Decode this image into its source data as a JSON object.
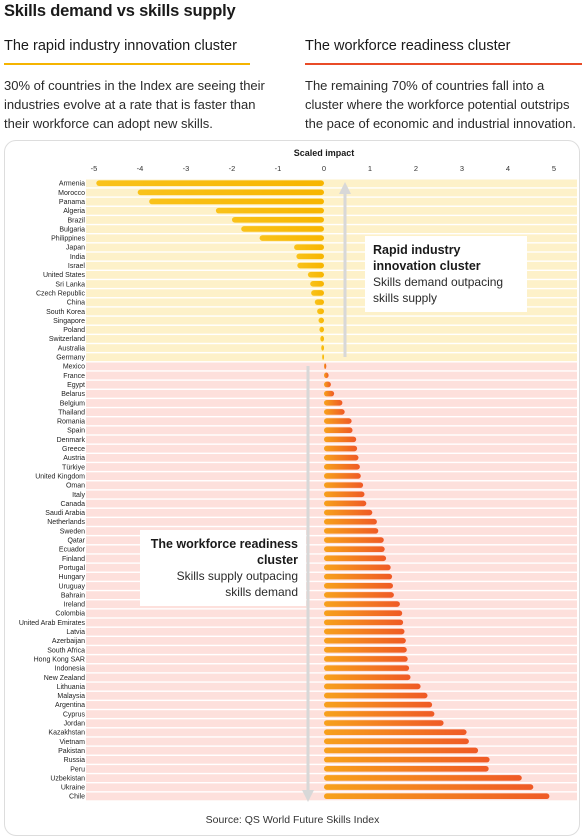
{
  "title": "Skills demand vs skills supply",
  "left_heading": "The rapid industry innovation cluster",
  "right_heading": "The workforce readiness cluster",
  "left_text": "30% of countries in the Index are seeing their industries evolve at a rate that is faster than their workforce can adopt new skills.",
  "right_text": "The remaining 70% of countries fall into a cluster where the workforce potential outstrips the pace of economic and industrial innovation.",
  "annotation_top_title": "Rapid industry innovation cluster",
  "annotation_top_sub": "Skills demand outpacing skills supply",
  "annotation_bottom_title": "The workforce readiness cluster",
  "annotation_bottom_sub": "Skills supply outpacing skills demand",
  "source": "Source: QS World Future Skills Index",
  "colors": {
    "yellow_bar": "#f7b500",
    "orange_bar": "#ef5a26",
    "yellow_band": "#fdf1c9",
    "red_band": "#fde0dc",
    "arrow": "#d8d8d8"
  },
  "chart_data": {
    "type": "bar",
    "orientation": "horizontal",
    "title": "Scaled impact",
    "xlim": [
      -5,
      5
    ],
    "xticks": [
      -5,
      -4,
      -3,
      -2,
      -1,
      0,
      1,
      2,
      3,
      4,
      5
    ],
    "categories": [
      "Armenia",
      "Morocco",
      "Panama",
      "Algeria",
      "Brazil",
      "Bulgaria",
      "Philippines",
      "Japan",
      "India",
      "Israel",
      "United States",
      "Sri Lanka",
      "Czech Republic",
      "China",
      "South Korea",
      "Singapore",
      "Poland",
      "Switzerland",
      "Australia",
      "Germany",
      "Mexico",
      "France",
      "Egypt",
      "Belarus",
      "Belgium",
      "Thailand",
      "Romania",
      "Spain",
      "Denmark",
      "Greece",
      "Austria",
      "Türkiye",
      "United Kingdom",
      "Oman",
      "Italy",
      "Canada",
      "Saudi Arabia",
      "Netherlands",
      "Sweden",
      "Qatar",
      "Ecuador",
      "Finland",
      "Portugal",
      "Hungary",
      "Uruguay",
      "Bahrain",
      "Ireland",
      "Colombia",
      "United Arab Emirates",
      "Latvia",
      "Azerbaijan",
      "South Africa",
      "Hong Kong SAR",
      "Indonesia",
      "New Zealand",
      "Lithuania",
      "Malaysia",
      "Argentina",
      "Cyprus",
      "Jordan",
      "Kazakhstan",
      "Vietnam",
      "Pakistan",
      "Russia",
      "Peru",
      "Uzbekistan",
      "Ukraine",
      "Chile"
    ],
    "values": [
      -4.95,
      -4.05,
      -3.8,
      -2.35,
      -2.0,
      -1.8,
      -1.4,
      -0.65,
      -0.6,
      -0.58,
      -0.35,
      -0.3,
      -0.28,
      -0.2,
      -0.15,
      -0.12,
      -0.1,
      -0.08,
      -0.06,
      -0.04,
      0.05,
      0.1,
      0.15,
      0.22,
      0.4,
      0.45,
      0.6,
      0.62,
      0.7,
      0.72,
      0.75,
      0.78,
      0.8,
      0.85,
      0.88,
      0.92,
      1.05,
      1.15,
      1.18,
      1.3,
      1.32,
      1.35,
      1.45,
      1.48,
      1.5,
      1.52,
      1.65,
      1.7,
      1.72,
      1.75,
      1.78,
      1.8,
      1.82,
      1.85,
      1.88,
      2.1,
      2.25,
      2.35,
      2.4,
      2.6,
      3.1,
      3.15,
      3.35,
      3.6,
      3.58,
      4.3,
      4.55,
      4.9
    ]
  }
}
